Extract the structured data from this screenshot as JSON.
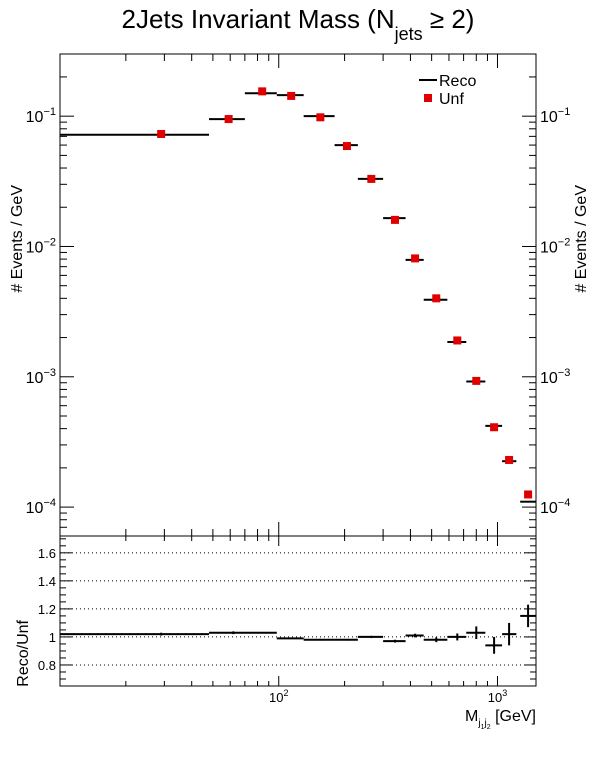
{
  "chart_data": [
    {
      "type": "scatter",
      "title": {
        "main": "2Jets Invariant Mass (N",
        "sub": "jets",
        "tail": " ≥ 2)"
      },
      "ylabel_left": "# Events / GeV",
      "ylabel_right": "# Events / GeV",
      "xscale": "log",
      "yscale": "log",
      "xlim": [
        10,
        1500
      ],
      "ylim": [
        6e-05,
        0.3
      ],
      "yticks": [
        {
          "v": 0.1,
          "b": "10",
          "e": "−1"
        },
        {
          "v": 0.01,
          "b": "10",
          "e": "−2"
        },
        {
          "v": 0.001,
          "b": "10",
          "e": "−3"
        },
        {
          "v": 0.0001,
          "b": "10",
          "e": "−4"
        }
      ],
      "legend": {
        "position": "top-right",
        "entries": [
          "Reco",
          "Unf"
        ]
      },
      "series": [
        {
          "name": "Reco",
          "style": "black horizontal bars",
          "color": "#000000",
          "points": [
            {
              "xlo": 10,
              "xhi": 48,
              "y": 0.072
            },
            {
              "xlo": 48,
              "xhi": 70,
              "y": 0.095
            },
            {
              "xlo": 70,
              "xhi": 98,
              "y": 0.15
            },
            {
              "xlo": 98,
              "xhi": 130,
              "y": 0.145
            },
            {
              "xlo": 130,
              "xhi": 180,
              "y": 0.1
            },
            {
              "xlo": 180,
              "xhi": 230,
              "y": 0.06
            },
            {
              "xlo": 230,
              "xhi": 300,
              "y": 0.033
            },
            {
              "xlo": 300,
              "xhi": 380,
              "y": 0.0165
            },
            {
              "xlo": 380,
              "xhi": 460,
              "y": 0.0079
            },
            {
              "xlo": 460,
              "xhi": 590,
              "y": 0.0039
            },
            {
              "xlo": 590,
              "xhi": 720,
              "y": 0.00185
            },
            {
              "xlo": 720,
              "xhi": 880,
              "y": 0.00092
            },
            {
              "xlo": 880,
              "xhi": 1050,
              "y": 0.00042
            },
            {
              "xlo": 1050,
              "xhi": 1220,
              "y": 0.000225
            },
            {
              "xlo": 1270,
              "xhi": 1500,
              "y": 0.00011
            }
          ]
        },
        {
          "name": "Unf",
          "style": "red square markers",
          "color": "#e00000",
          "points": [
            {
              "x": 29,
              "y": 0.073
            },
            {
              "x": 59,
              "y": 0.095
            },
            {
              "x": 84,
              "y": 0.155
            },
            {
              "x": 114,
              "y": 0.143
            },
            {
              "x": 155,
              "y": 0.098
            },
            {
              "x": 205,
              "y": 0.059
            },
            {
              "x": 265,
              "y": 0.033
            },
            {
              "x": 340,
              "y": 0.016
            },
            {
              "x": 420,
              "y": 0.0081
            },
            {
              "x": 525,
              "y": 0.004
            },
            {
              "x": 655,
              "y": 0.0019
            },
            {
              "x": 800,
              "y": 0.00093
            },
            {
              "x": 965,
              "y": 0.00041
            },
            {
              "x": 1130,
              "y": 0.00023
            },
            {
              "x": 1380,
              "y": 0.000125
            }
          ]
        }
      ]
    },
    {
      "type": "scatter",
      "ylabel": "Reco/Unf",
      "xlabel": {
        "main": "M",
        "sub": "j",
        "sub2": "1",
        "sub3": "j",
        "sub4": "2",
        "unit": " [GeV]"
      },
      "xscale": "log",
      "xlim": [
        10,
        1500
      ],
      "ylim": [
        0.65,
        1.72
      ],
      "yticks": [
        {
          "v": 0.8,
          "label": "0.8"
        },
        {
          "v": 1.0,
          "label": "1"
        },
        {
          "v": 1.2,
          "label": "1.2"
        },
        {
          "v": 1.4,
          "label": "1.4"
        },
        {
          "v": 1.6,
          "label": "1.6"
        }
      ],
      "xticks": [
        {
          "v": 100,
          "b": "10",
          "e": "2"
        },
        {
          "v": 1000,
          "b": "10",
          "e": "3"
        }
      ],
      "grid": "horizontal dotted",
      "gridlines": [
        0.8,
        1.0,
        1.2,
        1.4,
        1.6
      ],
      "points": [
        {
          "xlo": 10,
          "xhi": 48,
          "x": 29,
          "y": 1.02,
          "err": 0.01
        },
        {
          "xlo": 48,
          "xhi": 98,
          "x": 62,
          "y": 1.03,
          "err": 0.01
        },
        {
          "xlo": 98,
          "xhi": 130,
          "x": 114,
          "y": 0.99,
          "err": 0.005
        },
        {
          "xlo": 130,
          "xhi": 180,
          "x": 155,
          "y": 0.98,
          "err": 0.006
        },
        {
          "xlo": 180,
          "xhi": 230,
          "x": 205,
          "y": 0.98,
          "err": 0.006
        },
        {
          "xlo": 230,
          "xhi": 300,
          "x": 265,
          "y": 1.0,
          "err": 0.008
        },
        {
          "xlo": 300,
          "xhi": 380,
          "x": 340,
          "y": 0.97,
          "err": 0.01
        },
        {
          "xlo": 380,
          "xhi": 460,
          "x": 420,
          "y": 1.01,
          "err": 0.013
        },
        {
          "xlo": 460,
          "xhi": 590,
          "x": 525,
          "y": 0.98,
          "err": 0.017
        },
        {
          "xlo": 590,
          "xhi": 720,
          "x": 655,
          "y": 1.0,
          "err": 0.025
        },
        {
          "xlo": 720,
          "xhi": 880,
          "x": 800,
          "y": 1.03,
          "err": 0.045
        },
        {
          "xlo": 880,
          "xhi": 1050,
          "x": 965,
          "y": 0.94,
          "err": 0.06
        },
        {
          "xlo": 1050,
          "xhi": 1220,
          "x": 1130,
          "y": 1.02,
          "err": 0.08
        },
        {
          "xlo": 1270,
          "xhi": 1500,
          "x": 1380,
          "y": 1.15,
          "err": 0.08
        }
      ]
    }
  ]
}
